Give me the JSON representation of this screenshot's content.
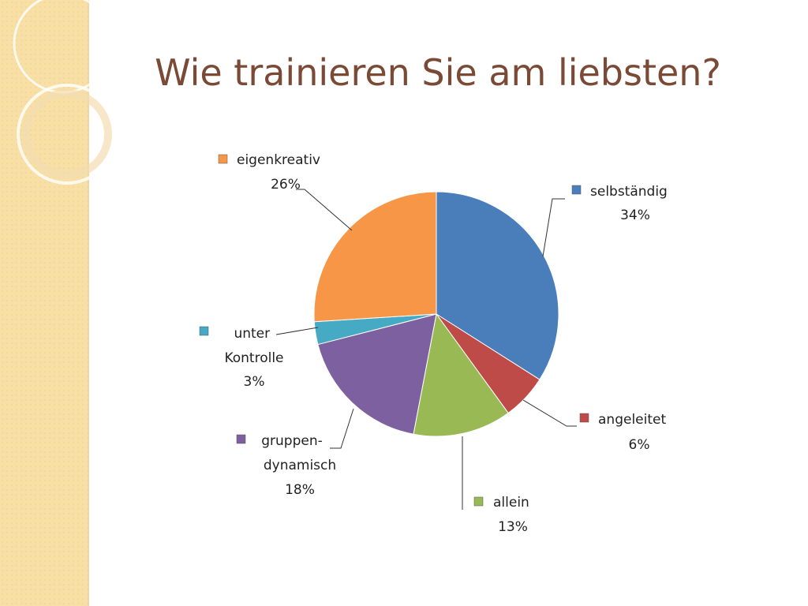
{
  "chart_data": {
    "type": "pie",
    "title": "Wie trainieren Sie am liebsten?",
    "categories": [
      "selbständig",
      "angeleitet",
      "allein",
      "gruppen-dynamisch",
      "unter Kontrolle",
      "eigenkreativ"
    ],
    "values": [
      34,
      6,
      13,
      18,
      3,
      26
    ],
    "value_labels": [
      "34%",
      "6%",
      "13%",
      "18%",
      "3%",
      "26%"
    ],
    "colors": [
      "#4a7ebb",
      "#be4b48",
      "#98b954",
      "#7d60a0",
      "#46aac5",
      "#f79646"
    ]
  }
}
